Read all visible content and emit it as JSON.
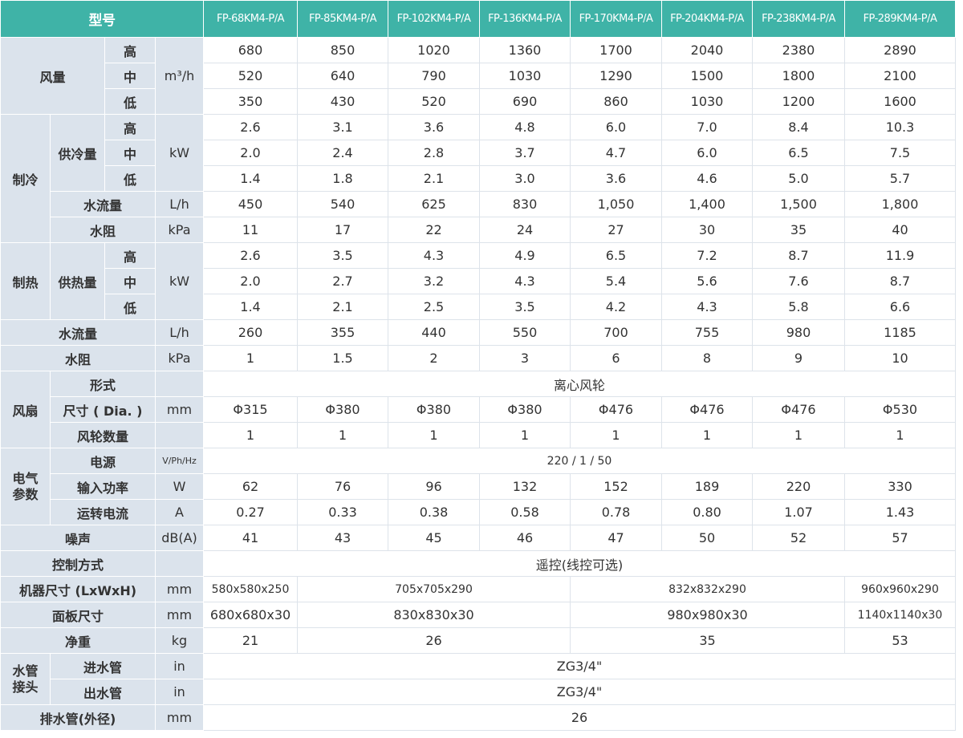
{
  "header": {
    "label": "型号",
    "models": [
      "FP-68KM4-P/A",
      "FP-85KM4-P/A",
      "FP-102KM4-P/A",
      "FP-136KM4-P/A",
      "FP-170KM4-P/A",
      "FP-204KM4-P/A",
      "FP-238KM4-P/A",
      "FP-289KM4-P/A"
    ]
  },
  "airflow": {
    "label": "风量",
    "unit": "m³/h",
    "levels": [
      "高",
      "中",
      "低"
    ],
    "values": [
      [
        "680",
        "850",
        "1020",
        "1360",
        "1700",
        "2040",
        "2380",
        "2890"
      ],
      [
        "520",
        "640",
        "790",
        "1030",
        "1290",
        "1500",
        "1800",
        "2100"
      ],
      [
        "350",
        "430",
        "520",
        "690",
        "860",
        "1030",
        "1200",
        "1600"
      ]
    ]
  },
  "cooling": {
    "label": "制冷",
    "capacity": {
      "label": "供冷量",
      "unit": "kW",
      "levels": [
        "高",
        "中",
        "低"
      ],
      "values": [
        [
          "2.6",
          "3.1",
          "3.6",
          "4.8",
          "6.0",
          "7.0",
          "8.4",
          "10.3"
        ],
        [
          "2.0",
          "2.4",
          "2.8",
          "3.7",
          "4.7",
          "6.0",
          "6.5",
          "7.5"
        ],
        [
          "1.4",
          "1.8",
          "2.1",
          "3.0",
          "3.6",
          "4.6",
          "5.0",
          "5.7"
        ]
      ]
    },
    "water_flow": {
      "label": "水流量",
      "unit": "L/h",
      "values": [
        "450",
        "540",
        "625",
        "830",
        "1,050",
        "1,400",
        "1,500",
        "1,800"
      ]
    },
    "water_resistance": {
      "label": "水阻",
      "unit": "kPa",
      "values": [
        "11",
        "17",
        "22",
        "24",
        "27",
        "30",
        "35",
        "40"
      ]
    }
  },
  "heating": {
    "label": "制热",
    "capacity": {
      "label": "供热量",
      "unit": "kW",
      "levels": [
        "高",
        "中",
        "低"
      ],
      "values": [
        [
          "2.6",
          "3.5",
          "4.3",
          "4.9",
          "6.5",
          "7.2",
          "8.7",
          "11.9"
        ],
        [
          "2.0",
          "2.7",
          "3.2",
          "4.3",
          "5.4",
          "5.6",
          "7.6",
          "8.7"
        ],
        [
          "1.4",
          "2.1",
          "2.5",
          "3.5",
          "4.2",
          "4.3",
          "5.8",
          "6.6"
        ]
      ]
    },
    "water_flow": {
      "label": "水流量",
      "unit": "L/h",
      "values": [
        "260",
        "355",
        "440",
        "550",
        "700",
        "755",
        "980",
        "1185"
      ]
    },
    "water_resistance": {
      "label": "水阻",
      "unit": "kPa",
      "values": [
        "1",
        "1.5",
        "2",
        "3",
        "6",
        "8",
        "9",
        "10"
      ]
    }
  },
  "fan": {
    "label": "风扇",
    "type": {
      "label": "形式",
      "value": "离心风轮"
    },
    "size": {
      "label": "尺寸 ( Dia. )",
      "unit": "mm",
      "values": [
        "Φ315",
        "Φ380",
        "Φ380",
        "Φ380",
        "Φ476",
        "Φ476",
        "Φ476",
        "Φ530"
      ]
    },
    "count": {
      "label": "风轮数量",
      "values": [
        "1",
        "1",
        "1",
        "1",
        "1",
        "1",
        "1",
        "1"
      ]
    }
  },
  "electrical": {
    "label": "电气参数",
    "power_supply": {
      "label": "电源",
      "unit": "V/Ph/Hz",
      "value": "220 / 1 / 50"
    },
    "input_power": {
      "label": "输入功率",
      "unit": "W",
      "values": [
        "62",
        "76",
        "96",
        "132",
        "152",
        "189",
        "220",
        "330"
      ]
    },
    "current": {
      "label": "运转电流",
      "unit": "A",
      "values": [
        "0.27",
        "0.33",
        "0.38",
        "0.58",
        "0.78",
        "0.80",
        "1.07",
        "1.43"
      ]
    }
  },
  "noise": {
    "label": "噪声",
    "unit": "dB(A)",
    "values": [
      "41",
      "43",
      "45",
      "46",
      "47",
      "50",
      "52",
      "57"
    ]
  },
  "control": {
    "label": "控制方式",
    "value": "遥控(线控可选)"
  },
  "unit_size": {
    "label": "机器尺寸 (LxWxH)",
    "unit": "mm",
    "values": [
      "580x580x250",
      "705x705x290",
      "832x832x290",
      "960x960x290"
    ]
  },
  "panel_size": {
    "label": "面板尺寸",
    "unit": "mm",
    "values": [
      "680x680x30",
      "830x830x30",
      "980x980x30",
      "1140x1140x30"
    ]
  },
  "weight": {
    "label": "净重",
    "unit": "kg",
    "values": [
      "21",
      "26",
      "35",
      "53"
    ]
  },
  "piping": {
    "label": "水管接头",
    "inlet": {
      "label": "进水管",
      "unit": "in",
      "value": "ZG3/4\""
    },
    "outlet": {
      "label": "出水管",
      "unit": "in",
      "value": "ZG3/4\""
    },
    "drain": {
      "label": "排水管(外径)",
      "unit": "mm",
      "value": "26"
    }
  }
}
